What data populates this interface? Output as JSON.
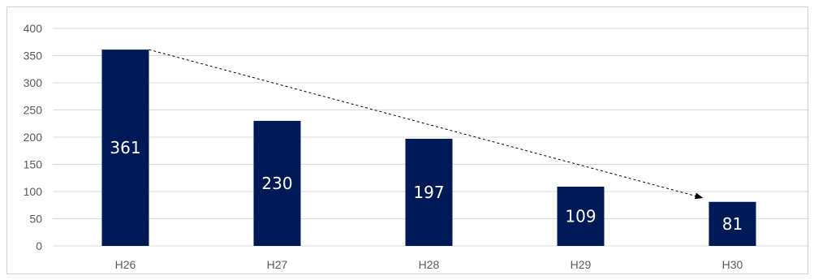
{
  "chart_data": {
    "type": "bar",
    "categories": [
      "H26",
      "H27",
      "H28",
      "H29",
      "H30"
    ],
    "values": [
      361,
      230,
      197,
      109,
      81
    ],
    "data_labels": [
      "361",
      "230",
      "197",
      "109",
      "81"
    ],
    "y_ticks": [
      0,
      50,
      100,
      150,
      200,
      250,
      300,
      350,
      400
    ],
    "ylim": [
      0,
      400
    ],
    "title": "",
    "xlabel": "",
    "ylabel": "",
    "grid": true,
    "legend": "none",
    "bar_color": "#001a57",
    "trend_arrow": {
      "from": "H26",
      "to": "H30",
      "style": "dashed"
    }
  }
}
